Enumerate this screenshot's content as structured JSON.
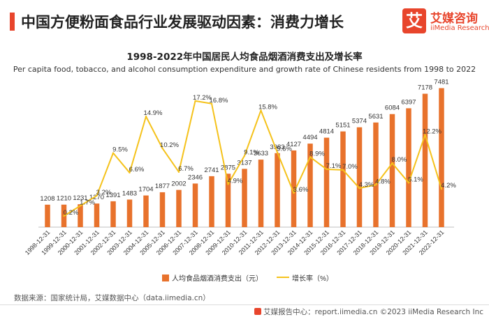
{
  "header": {
    "title": "中国方便粉面食品行业发展驱动因素：消费力增长",
    "logo_glyph": "艾",
    "logo_cn": "艾媒咨询",
    "logo_en": "iiMedia Research"
  },
  "footer": {
    "source": "数据来源：国家统计局，艾媒数据中心（data.iimedia.cn）",
    "copyright": "艾媒报告中心：report.iimedia.cn   ©2023  iiMedia Research  Inc"
  },
  "chart_data": {
    "type": "bar",
    "title": "1998-2022年中国居民人均食品烟酒消费支出及增长率",
    "subtitle": "Per capita food, tobacco, and alcohol consumption expenditure and growth rate of Chinese residents from 1998 to 2022",
    "categories": [
      "1998-12-31",
      "1999-12-31",
      "2000-12-31",
      "2001-12-31",
      "2002-12-31",
      "2003-12-31",
      "2004-12-31",
      "2005-12-31",
      "2006-12-31",
      "2007-12-31",
      "2008-12-31",
      "2009-12-31",
      "2010-12-31",
      "2011-12-31",
      "2012-12-31",
      "2013-12-31",
      "2014-12-31",
      "2015-12-31",
      "2016-12-31",
      "2017-12-31",
      "2018-12-31",
      "2019-12-31",
      "2020-12-31",
      "2021-12-31",
      "2022-12-31"
    ],
    "series": [
      {
        "name": "人均食品烟酒消费支出（元）",
        "type": "bar",
        "color": "#e8722c",
        "values": [
          1208,
          1210,
          1231,
          1270,
          1391,
          1483,
          1704,
          1877,
          2002,
          2346,
          2741,
          2875,
          3137,
          3633,
          3983,
          4127,
          4494,
          4814,
          5151,
          5374,
          5631,
          6084,
          6397,
          7178,
          7481
        ]
      },
      {
        "name": "增长率（%）",
        "type": "line",
        "color": "#f5c21b",
        "values": [
          null,
          0.2,
          1.7,
          3.2,
          9.5,
          6.6,
          14.9,
          10.2,
          6.7,
          17.2,
          16.8,
          4.9,
          9.1,
          15.8,
          9.6,
          3.6,
          8.9,
          7.1,
          7.0,
          4.3,
          4.8,
          8.0,
          5.1,
          12.2,
          4.2
        ],
        "labels": [
          "",
          "0.2%",
          "1.7%",
          "3.2%",
          "9.5%",
          "6.6%",
          "14.9%",
          "10.2%",
          "6.7%",
          "17.2%",
          "16.8%",
          "4.9%",
          "9.1%",
          "15.8%",
          "9.6%",
          "3.6%",
          "8.9%",
          "7.1%",
          "7.0%",
          "4.3%",
          "4.8%",
          "8.0%",
          "5.1%",
          "12.2%",
          "4.2%"
        ]
      }
    ],
    "y_left_range": [
      0,
      7600
    ],
    "y_right_range": [
      -6.5,
      19.5
    ],
    "legend_position": "bottom-center",
    "grid": false
  }
}
